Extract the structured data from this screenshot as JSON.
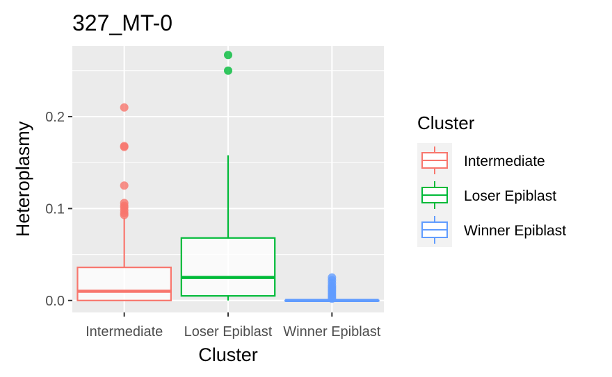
{
  "chart_data": {
    "type": "box",
    "title": "327_MT-0",
    "xlabel": "Cluster",
    "ylabel": "Heteroplasmy",
    "ylim": [
      -0.013,
      0.277
    ],
    "yticks": [
      0.0,
      0.1,
      0.2
    ],
    "ytick_labels": [
      "0.0",
      "0.1",
      "0.2"
    ],
    "grid": true,
    "legend": {
      "title": "Cluster",
      "placement": "right",
      "entries": [
        "Intermediate",
        "Loser Epiblast",
        "Winner Epiblast"
      ]
    },
    "categories": [
      "Intermediate",
      "Loser Epiblast",
      "Winner Epiblast"
    ],
    "boxes": [
      {
        "name": "Intermediate",
        "color": "#F8766D",
        "whisker_low": 0.0,
        "q1": 0.0,
        "median": 0.01,
        "q3": 0.036,
        "whisker_high": 0.09,
        "outliers": [
          0.093,
          0.095,
          0.098,
          0.101,
          0.103,
          0.106,
          0.125,
          0.167,
          0.168,
          0.21
        ]
      },
      {
        "name": "Loser Epiblast",
        "color": "#00BA38",
        "whisker_low": 0.0,
        "q1": 0.005,
        "median": 0.025,
        "q3": 0.068,
        "whisker_high": 0.158,
        "outliers": [
          0.25,
          0.267
        ]
      },
      {
        "name": "Winner Epiblast",
        "color": "#619CFF",
        "whisker_low": 0.0,
        "q1": 0.0,
        "median": 0.0,
        "q3": 0.0,
        "whisker_high": 0.0,
        "outliers": [
          0.002,
          0.004,
          0.006,
          0.008,
          0.01,
          0.012,
          0.014,
          0.016,
          0.019,
          0.022,
          0.025
        ]
      }
    ]
  }
}
